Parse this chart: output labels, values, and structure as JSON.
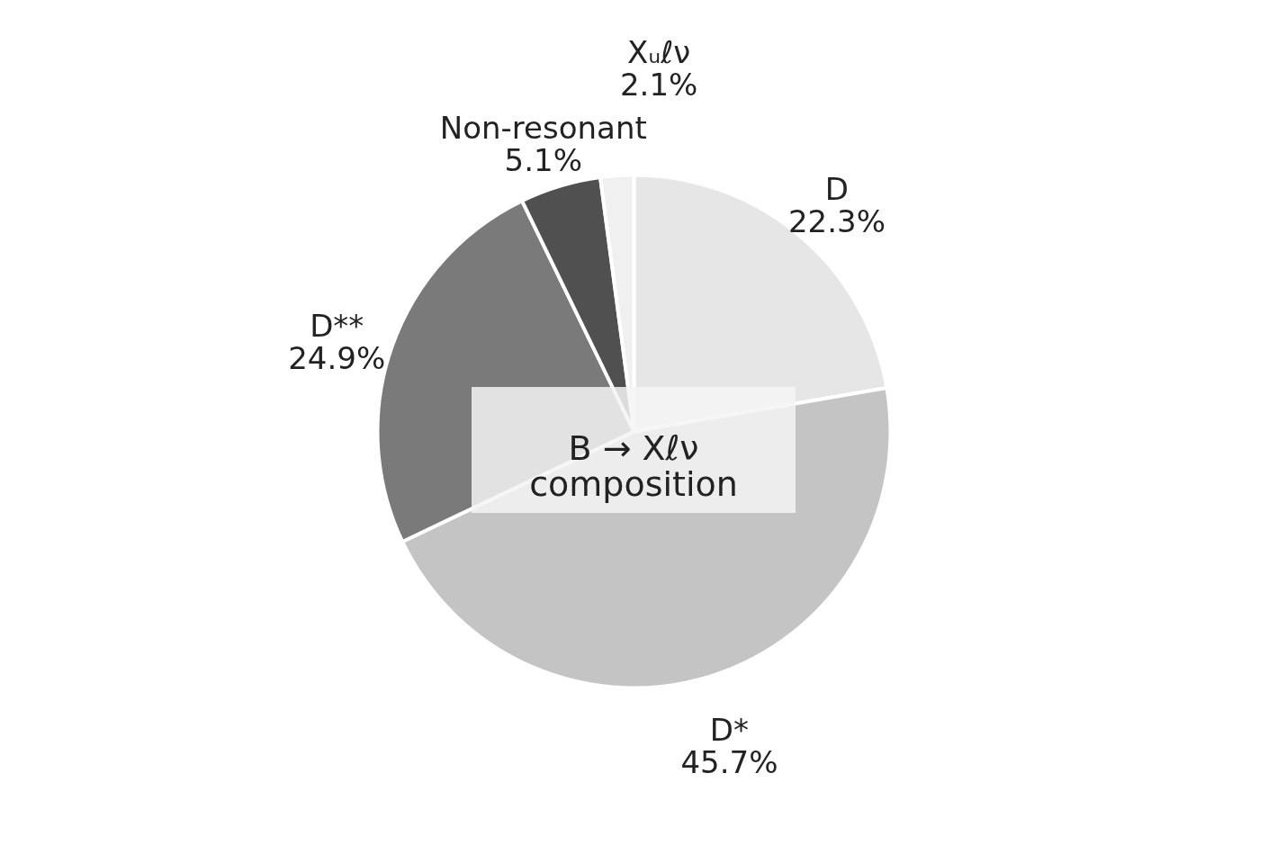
{
  "chart_data": {
    "type": "pie",
    "title": "B → Xℓν\ncomposition",
    "categories": [
      "D",
      "D*",
      "D**",
      "Non-resonant",
      "Xᵤℓν"
    ],
    "values": [
      22.3,
      45.7,
      24.9,
      5.1,
      2.1
    ],
    "colors": [
      "#e6e6e6",
      "#c4c4c4",
      "#7a7a7a",
      "#505050",
      "#f0f0f0"
    ],
    "value_labels": [
      "22.3%",
      "45.7%",
      "24.9%",
      "5.1%",
      "2.1%"
    ]
  }
}
